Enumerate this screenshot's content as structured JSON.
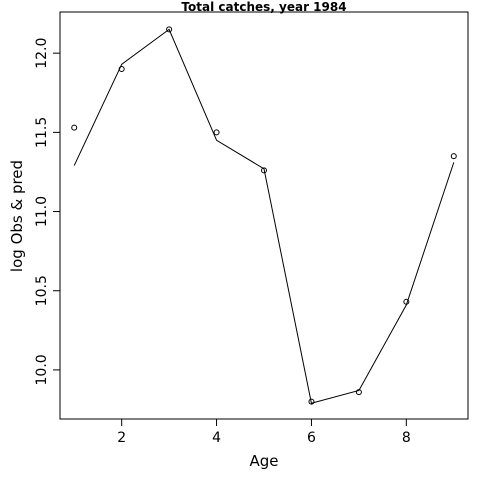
{
  "chart_data": {
    "type": "line",
    "title": "Total catches, year 1984",
    "xlabel": "Age",
    "ylabel": "log Obs & pred",
    "xlim": [
      0.7,
      9.3
    ],
    "ylim": [
      9.69,
      12.26
    ],
    "x_ticks": [
      2,
      4,
      6,
      8
    ],
    "x_tick_labels": [
      "2",
      "4",
      "6",
      "8"
    ],
    "y_ticks": [
      10.0,
      10.5,
      11.0,
      11.5,
      12.0
    ],
    "y_tick_labels": [
      "10.0",
      "10.5",
      "11.0",
      "11.5",
      "12.0"
    ],
    "grid": false,
    "series": [
      {
        "style": "points",
        "x": [
          1,
          2,
          3,
          4,
          5,
          6,
          7,
          8,
          9
        ],
        "y": [
          11.53,
          11.9,
          12.15,
          11.5,
          11.26,
          9.8,
          9.86,
          10.43,
          11.35
        ]
      },
      {
        "style": "line",
        "x": [
          1,
          2,
          3,
          4,
          5,
          6,
          7,
          8,
          9
        ],
        "y": [
          11.29,
          11.93,
          12.15,
          11.45,
          11.27,
          9.79,
          9.87,
          10.41,
          11.31
        ]
      }
    ]
  }
}
